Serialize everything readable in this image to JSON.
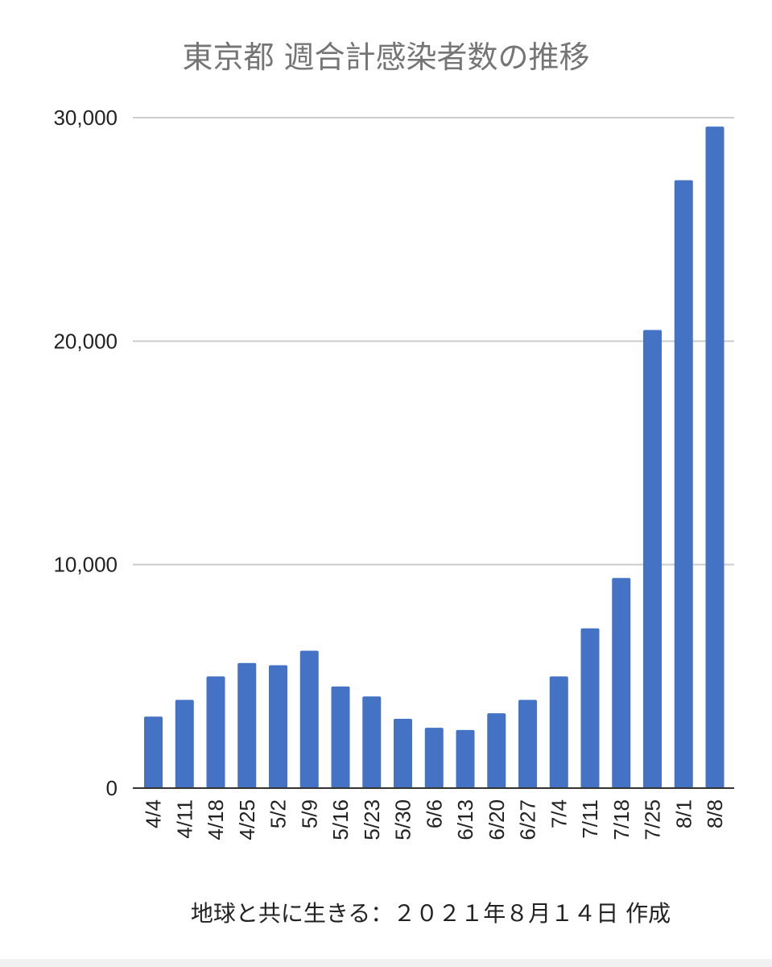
{
  "title": "東京都 週合計感染者数の推移",
  "footer": "地球と共に生きる：２０２１年８月１４日 作成",
  "colors": {
    "bar": "#4472c4",
    "grid": "#cccccc",
    "axis": "#333333",
    "title": "#757575"
  },
  "chart_data": {
    "type": "bar",
    "title": "東京都 週合計感染者数の推移",
    "xlabel": "",
    "ylabel": "",
    "categories": [
      "4/4",
      "4/11",
      "4/18",
      "4/25",
      "5/2",
      "5/9",
      "5/16",
      "5/23",
      "5/30",
      "6/6",
      "6/13",
      "6/20",
      "6/27",
      "7/4",
      "7/11",
      "7/18",
      "7/25",
      "8/1",
      "8/8"
    ],
    "values": [
      3200,
      3950,
      5000,
      5600,
      5500,
      6150,
      4550,
      4100,
      3100,
      2700,
      2600,
      3350,
      3950,
      5000,
      7150,
      9400,
      20500,
      27200,
      29600
    ],
    "ylim": [
      0,
      30000
    ],
    "yticks": [
      {
        "value": 0,
        "label": "0"
      },
      {
        "value": 10000,
        "label": "10,000"
      },
      {
        "value": 20000,
        "label": "20,000"
      },
      {
        "value": 30000,
        "label": "30,000"
      }
    ],
    "grid": true,
    "legend": "none"
  }
}
